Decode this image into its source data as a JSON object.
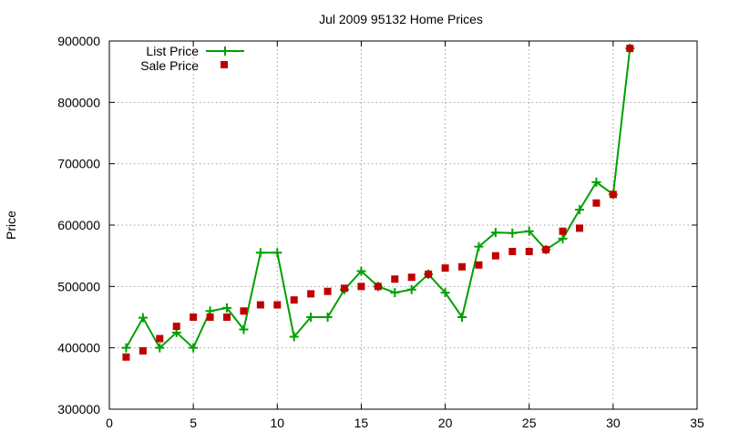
{
  "chart_data": {
    "type": "line",
    "title": "Jul 2009 95132 Home Prices",
    "xlabel": "",
    "ylabel": "Price",
    "xlim": [
      0,
      35
    ],
    "ylim": [
      300000,
      900000
    ],
    "xticks": [
      0,
      5,
      10,
      15,
      20,
      25,
      30,
      35
    ],
    "yticks": [
      300000,
      400000,
      500000,
      600000,
      700000,
      800000,
      900000
    ],
    "xtick_labels": [
      "0",
      "5",
      "10",
      "15",
      "20",
      "25",
      "30",
      "35"
    ],
    "ytick_labels": [
      "300000",
      "400000",
      "500000",
      "600000",
      "700000",
      "800000",
      "900000"
    ],
    "grid": true,
    "legend_position": "top-left",
    "x": [
      1,
      2,
      3,
      4,
      5,
      6,
      7,
      8,
      9,
      10,
      11,
      12,
      13,
      14,
      15,
      16,
      17,
      18,
      19,
      20,
      21,
      22,
      23,
      24,
      25,
      26,
      27,
      28,
      29,
      30,
      31
    ],
    "series": [
      {
        "name": "List Price",
        "style": "linespoints",
        "color": "#00a000",
        "marker": "plus",
        "values": [
          400000,
          449000,
          400000,
          425000,
          400000,
          460000,
          465000,
          430000,
          555000,
          555000,
          418000,
          450000,
          450000,
          495000,
          525000,
          500000,
          490000,
          495000,
          520000,
          490000,
          450000,
          565000,
          588000,
          587000,
          590000,
          560000,
          578000,
          625000,
          670000,
          650000,
          888000
        ]
      },
      {
        "name": "Sale Price",
        "style": "points",
        "color": "#c00000",
        "marker": "square",
        "values": [
          385000,
          395000,
          415000,
          435000,
          450000,
          450000,
          450000,
          460000,
          470000,
          470000,
          478000,
          488000,
          492000,
          497000,
          500000,
          500000,
          512000,
          515000,
          520000,
          530000,
          532000,
          535000,
          550000,
          557000,
          557000,
          560000,
          590000,
          595000,
          636000,
          650000,
          888000
        ]
      }
    ]
  }
}
